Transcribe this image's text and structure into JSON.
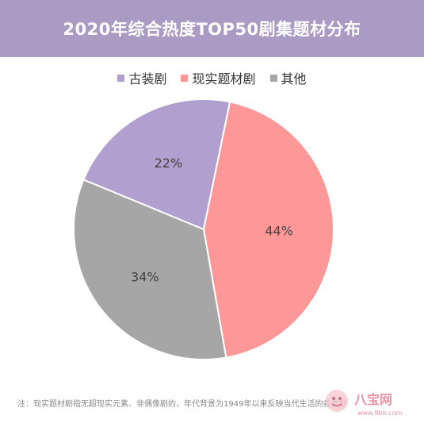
{
  "header": {
    "title": "2020年综合热度TOP50剧集题材分布"
  },
  "chart_data": {
    "type": "pie",
    "title": "2020年综合热度TOP50剧集题材分布",
    "slices": [
      {
        "name": "古装剧",
        "value": 22,
        "label": "22%",
        "color": "#b19fd0"
      },
      {
        "name": "现实题材剧",
        "value": 44,
        "label": "44%",
        "color": "#fe9797"
      },
      {
        "name": "其他",
        "value": 34,
        "label": "34%",
        "color": "#a6a6a6"
      }
    ],
    "legend_position": "top"
  },
  "footnote": "注：现实题材剧指无超现实元素、非偶像剧的，年代背景为1949年以来反映当代生活的各类剧",
  "watermark": {
    "text": "八宝网",
    "subtext": "www.8bb.com"
  }
}
